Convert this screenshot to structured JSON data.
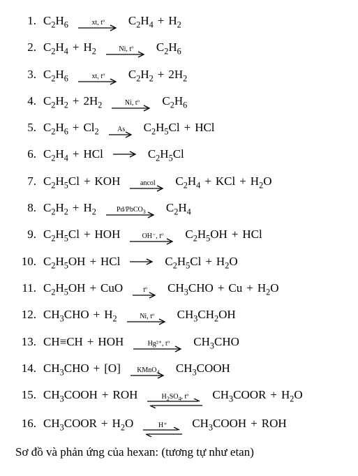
{
  "font": {
    "family": "Times New Roman",
    "size_pt": 17,
    "color": "#000000"
  },
  "background_color": "#ffffff",
  "arrow_color": "#000000",
  "condition_font_size_pt": 10,
  "equations": [
    {
      "n": "1.",
      "lhs": [
        "C2H6"
      ],
      "cond": "xt, tº",
      "arrow": "fwd",
      "rhs": [
        "C2H4",
        "+",
        "H2"
      ]
    },
    {
      "n": "2.",
      "lhs": [
        "C2H4",
        "+",
        "H2"
      ],
      "cond": "Ni, tº",
      "arrow": "fwd",
      "rhs": [
        "C2H6"
      ]
    },
    {
      "n": "3.",
      "lhs": [
        "C2H6"
      ],
      "cond": "xt, tº",
      "arrow": "fwd",
      "rhs": [
        "C2H2",
        "+",
        "2H2"
      ]
    },
    {
      "n": "4.",
      "lhs": [
        "C2H2",
        "+",
        "2H2"
      ],
      "cond": "Ni, tº",
      "arrow": "fwd",
      "rhs": [
        "C2H6"
      ]
    },
    {
      "n": "5.",
      "lhs": [
        "C2H6",
        "+",
        "Cl2"
      ],
      "cond": "As",
      "arrow": "fwd",
      "rhs": [
        "C2H5Cl",
        "+",
        "HCl"
      ]
    },
    {
      "n": "6.",
      "lhs": [
        "C2H4",
        "+",
        "HCl"
      ],
      "cond": "",
      "arrow": "fwd",
      "rhs": [
        "C2H5Cl"
      ]
    },
    {
      "n": "7.",
      "lhs": [
        "C2H5Cl",
        "+",
        "KOH"
      ],
      "cond": "ancol",
      "arrow": "fwd",
      "rhs": [
        "C2H4",
        "+",
        "KCl",
        "+",
        "H2O"
      ]
    },
    {
      "n": "8.",
      "lhs": [
        "C2H2",
        "+",
        "H2"
      ],
      "cond": "Pd/PbCO3",
      "arrow": "fwd",
      "rhs": [
        "C2H4"
      ]
    },
    {
      "n": "9.",
      "lhs": [
        "C2H5Cl",
        "+",
        "HOH"
      ],
      "cond": "OH⁻, tº",
      "arrow": "fwd",
      "rhs": [
        "C2H5OH",
        "+",
        "HCl"
      ]
    },
    {
      "n": "10.",
      "lhs": [
        "C2H5OH",
        "+",
        "HCl"
      ],
      "cond": "",
      "arrow": "fwd",
      "rhs": [
        "C2H5Cl",
        "+",
        "H2O"
      ]
    },
    {
      "n": "11.",
      "lhs": [
        "C2H5OH",
        "+",
        "CuO"
      ],
      "cond": "tº",
      "arrow": "fwd",
      "rhs": [
        "CH3CHO",
        "+",
        "Cu",
        "+",
        "H2O"
      ]
    },
    {
      "n": "12.",
      "lhs": [
        "CH3CHO",
        "+",
        "H2"
      ],
      "cond": "Ni, tº",
      "arrow": "fwd",
      "rhs": [
        "CH3CH2OH"
      ]
    },
    {
      "n": "13.",
      "lhs": [
        "CH≡CH",
        "+",
        "HOH"
      ],
      "cond": "Hg²⁺, tº",
      "arrow": "fwd",
      "rhs": [
        "CH3CHO"
      ]
    },
    {
      "n": "14.",
      "lhs": [
        "CH3CHO",
        "+",
        "[O]"
      ],
      "cond": "KMnO4",
      "arrow": "fwd",
      "rhs": [
        "CH3COOH"
      ]
    },
    {
      "n": "15.",
      "lhs": [
        "CH3COOH",
        "+",
        "ROH"
      ],
      "cond": "H2SO4, tº",
      "arrow": "equil",
      "rhs": [
        "CH3COOR",
        "+",
        "H2O"
      ]
    },
    {
      "n": "16.",
      "lhs": [
        "CH3COOR",
        "+",
        "H2O"
      ],
      "cond": "H⁺",
      "arrow": "equil",
      "rhs": [
        "CH3COOH",
        "+",
        "ROH"
      ]
    }
  ],
  "footer_text": "Sơ đồ và phản ứng của hexan: (tương tự như etan)"
}
